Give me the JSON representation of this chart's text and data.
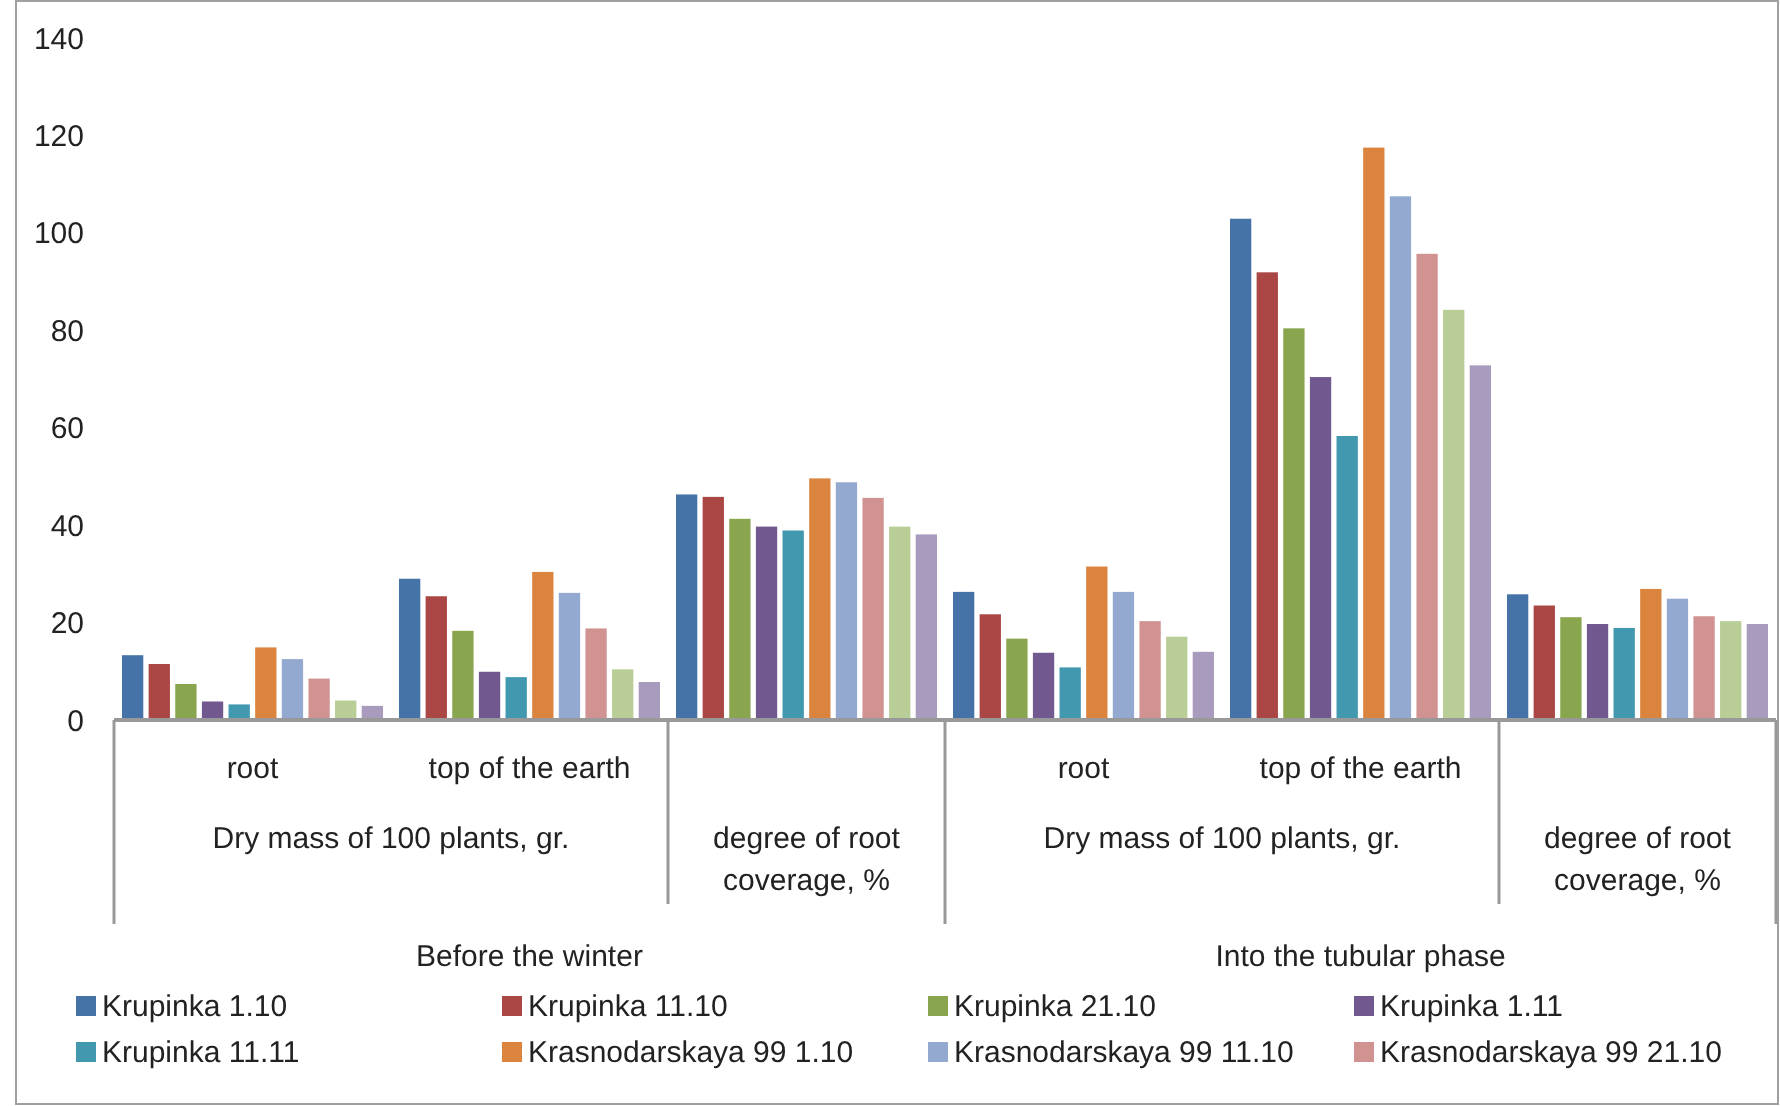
{
  "chart_data": {
    "type": "bar",
    "categories": [
      "root",
      "top of the earth",
      null,
      "root",
      "top of the earth",
      null
    ],
    "annotations": [
      "Dry mass of 100 plants, gr.",
      "degree of root coverage, %",
      "Dry mass of 100 plants, gr.",
      "degree of root coverage, %",
      "Before the winter",
      "Into the tubular phase"
    ],
    "series": [
      {
        "name": "Krupinka 1.10",
        "color": "#4572a7",
        "values": [
          13.3,
          29.0,
          46.3,
          26.3,
          102.9,
          25.8
        ]
      },
      {
        "name": "Krupinka 11.10",
        "color": "#aa4643",
        "values": [
          11.5,
          25.4,
          45.8,
          21.7,
          91.9,
          23.5
        ]
      },
      {
        "name": "Krupinka 21.10",
        "color": "#89a54e",
        "values": [
          7.4,
          18.3,
          41.3,
          16.7,
          80.4,
          21.1
        ]
      },
      {
        "name": "Krupinka 1.11",
        "color": "#71588f",
        "values": [
          3.8,
          9.9,
          39.7,
          13.8,
          70.4,
          19.7
        ]
      },
      {
        "name": "Krupinka 11.11",
        "color": "#4198af",
        "values": [
          3.2,
          8.8,
          38.9,
          10.8,
          58.3,
          18.9
        ]
      },
      {
        "name": "Krasnodarskaya 99 1.10",
        "color": "#db843d",
        "values": [
          14.9,
          30.4,
          49.6,
          31.5,
          117.5,
          26.9
        ]
      },
      {
        "name": "Krasnodarskaya 99 11.10",
        "color": "#93a9cf",
        "values": [
          12.5,
          26.1,
          48.8,
          26.3,
          107.5,
          24.9
        ]
      },
      {
        "name": "Krasnodarskaya 99 21.10",
        "color": "#d19392",
        "values": [
          8.5,
          18.8,
          45.6,
          20.3,
          95.7,
          21.3
        ]
      },
      {
        "color": "#b9cd96",
        "values": [
          4.0,
          10.4,
          39.7,
          17.1,
          84.2,
          20.3
        ]
      },
      {
        "color": "#a99bbd",
        "values": [
          2.9,
          7.8,
          38.1,
          14.0,
          72.8,
          19.7
        ]
      }
    ],
    "ylim": [
      0,
      140
    ],
    "yticks": [
      0,
      20,
      40,
      60,
      80,
      100,
      120,
      140
    ],
    "grid": false,
    "legend": "bottom"
  }
}
